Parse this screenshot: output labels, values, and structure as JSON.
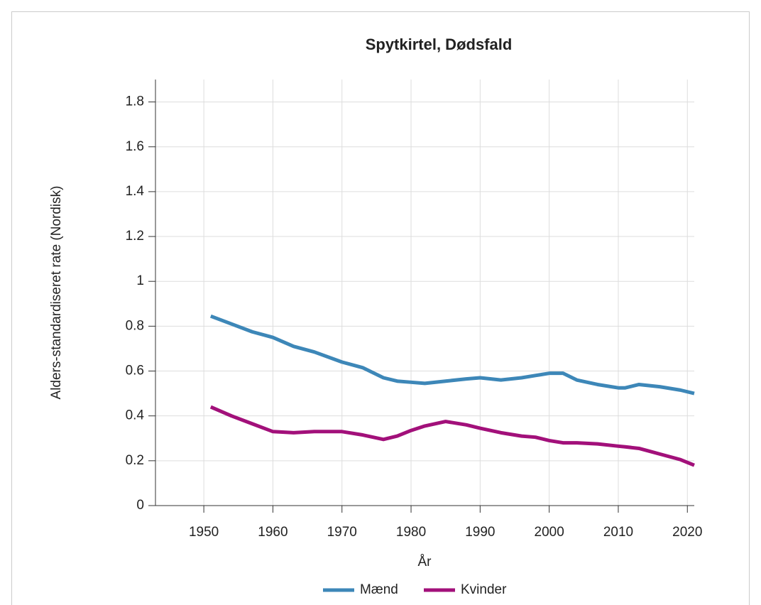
{
  "chart_data": {
    "type": "line",
    "title": "Spytkirtel, Dødsfald",
    "xlabel": "År",
    "ylabel": "Alders-standardiseret rate (Nordisk)",
    "x": [
      1951,
      1954,
      1957,
      1960,
      1963,
      1966,
      1970,
      1973,
      1976,
      1978,
      1980,
      1982,
      1985,
      1988,
      1990,
      1993,
      1996,
      1998,
      2000,
      2002,
      2004,
      2007,
      2010,
      2011,
      2013,
      2016,
      2019,
      2021
    ],
    "series": [
      {
        "name": "Mænd",
        "color": "#3d87b8",
        "values": [
          0.845,
          0.81,
          0.775,
          0.75,
          0.71,
          0.685,
          0.64,
          0.615,
          0.57,
          0.555,
          0.55,
          0.545,
          0.555,
          0.565,
          0.57,
          0.56,
          0.57,
          0.58,
          0.59,
          0.59,
          0.56,
          0.54,
          0.525,
          0.525,
          0.54,
          0.53,
          0.515,
          0.5
        ]
      },
      {
        "name": "Kvinder",
        "color": "#a2107a",
        "values": [
          0.44,
          0.4,
          0.365,
          0.33,
          0.325,
          0.33,
          0.33,
          0.315,
          0.295,
          0.31,
          0.335,
          0.355,
          0.375,
          0.36,
          0.345,
          0.325,
          0.31,
          0.305,
          0.29,
          0.28,
          0.28,
          0.275,
          0.265,
          0.262,
          0.255,
          0.23,
          0.205,
          0.18
        ]
      }
    ],
    "xlim": [
      1943,
      2021
    ],
    "xticks": [
      1950,
      1960,
      1970,
      1980,
      1990,
      2000,
      2010,
      2020
    ],
    "ylim": [
      0,
      1.9
    ],
    "yticks": [
      0,
      0.2,
      0.4,
      0.6,
      0.8,
      1,
      1.2,
      1.4,
      1.6,
      1.8
    ],
    "grid": true,
    "legend": "bottom"
  }
}
